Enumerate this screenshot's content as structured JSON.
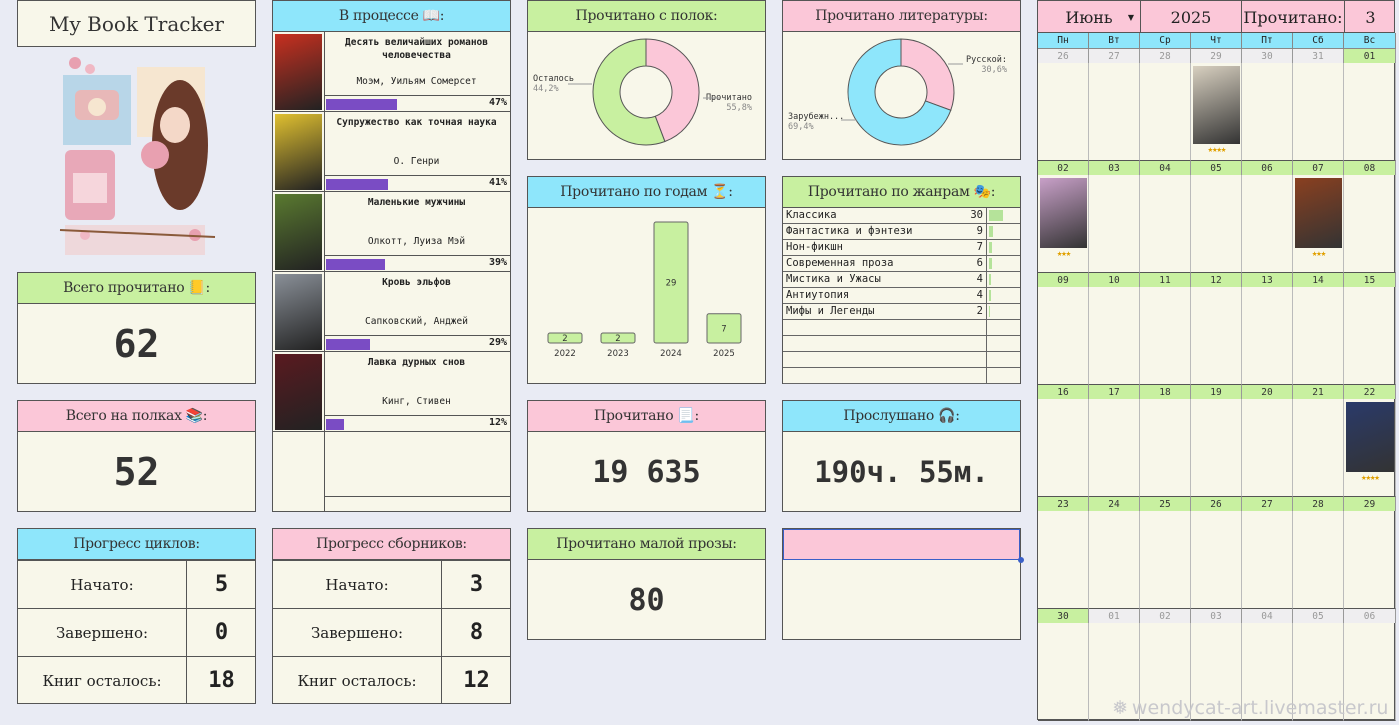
{
  "title": "My Book Tracker",
  "total_read": {
    "label": "Всего прочитано",
    "value": "62"
  },
  "total_shelves": {
    "label": "Всего на полках",
    "value": "52"
  },
  "in_progress": {
    "label": "В процессе",
    "books": [
      {
        "title": "Десять величайших романов человечества",
        "author": "Моэм, Уильям Сомерсет",
        "progress": 47,
        "pct": "47%",
        "cover_color": "#c83020"
      },
      {
        "title": "Супружество как точная наука",
        "author": "О. Генри",
        "progress": 41,
        "pct": "41%",
        "cover_color": "#e0c030"
      },
      {
        "title": "Маленькие мужчины",
        "author": "Олкотт, Луиза Мэй",
        "progress": 39,
        "pct": "39%",
        "cover_color": "#5a7a30"
      },
      {
        "title": "Кровь эльфов",
        "author": "Сапковский, Анджей",
        "progress": 29,
        "pct": "29%",
        "cover_color": "#8a9098"
      },
      {
        "title": "Лавка дурных снов",
        "author": "Кинг, Стивен",
        "progress": 12,
        "pct": "12%",
        "cover_color": "#5a1a20"
      }
    ]
  },
  "shelves_chart": {
    "label": "Прочитано с полок:",
    "slices": [
      {
        "name": "Осталось",
        "value": "44,2%",
        "pct": 44.2,
        "color": "#fbc7d8"
      },
      {
        "name": "Прочитано",
        "value": "55,8%",
        "pct": 55.8,
        "color": "#c8f0a0"
      }
    ]
  },
  "lit_chart": {
    "label": "Прочитано литературы:",
    "slices": [
      {
        "name": "Русской:",
        "value": "30,6%",
        "pct": 30.6,
        "color": "#fbc7d8"
      },
      {
        "name": "Зарубежн...",
        "value": "69,4%",
        "pct": 69.4,
        "color": "#8ee6fb"
      }
    ]
  },
  "chart_data": {
    "type": "bar",
    "title": "Прочитано по годам",
    "categories": [
      "2022",
      "2023",
      "2024",
      "2025"
    ],
    "values": [
      2,
      2,
      29,
      7
    ]
  },
  "genres": {
    "label": "Прочитано по жанрам",
    "items": [
      {
        "name": "Классика",
        "count": "30",
        "value": 30
      },
      {
        "name": "Фантастика и фэнтези",
        "count": "9",
        "value": 9
      },
      {
        "name": "Нон-фикшн",
        "count": "7",
        "value": 7
      },
      {
        "name": "Современная проза",
        "count": "6",
        "value": 6
      },
      {
        "name": "Мистика и Ужасы",
        "count": "4",
        "value": 4
      },
      {
        "name": "Антиутопия",
        "count": "4",
        "value": 4
      },
      {
        "name": "Мифы и Легенды",
        "count": "2",
        "value": 2
      }
    ]
  },
  "pages_read": {
    "label": "Прочитано",
    "value": "19 635"
  },
  "listened": {
    "label": "Прослушано",
    "value": "190ч. 55м."
  },
  "cycles": {
    "label": "Прогресс циклов:",
    "rows": [
      {
        "label": "Начато:",
        "value": "5"
      },
      {
        "label": "Завершено:",
        "value": "0"
      },
      {
        "label": "Книг осталось:",
        "value": "18"
      }
    ]
  },
  "collections": {
    "label": "Прогресс сборников:",
    "rows": [
      {
        "label": "Начато:",
        "value": "3"
      },
      {
        "label": "Завершено:",
        "value": "8"
      },
      {
        "label": "Книг осталось:",
        "value": "12"
      }
    ]
  },
  "short_prose": {
    "label": "Прочитано малой прозы:",
    "value": "80"
  },
  "calendar": {
    "month": "Июнь",
    "year": "2025",
    "read_label": "Прочитано:",
    "read_value": "3",
    "weekdays": [
      "Пн",
      "Вт",
      "Ср",
      "Чт",
      "Пт",
      "Сб",
      "Вс"
    ],
    "weeks": [
      [
        "26",
        "27",
        "28",
        "29",
        "30",
        "31",
        "01"
      ],
      [
        "02",
        "03",
        "04",
        "05",
        "06",
        "07",
        "08"
      ],
      [
        "09",
        "10",
        "11",
        "12",
        "13",
        "14",
        "15"
      ],
      [
        "16",
        "17",
        "18",
        "19",
        "20",
        "21",
        "22"
      ],
      [
        "23",
        "24",
        "25",
        "26",
        "27",
        "28",
        "29"
      ],
      [
        "30",
        "01",
        "02",
        "03",
        "04",
        "05",
        "06"
      ]
    ],
    "books": [
      {
        "week": 0,
        "day": 3,
        "stars": "★★★★",
        "color": "#d8d0c0"
      },
      {
        "week": 1,
        "day": 0,
        "stars": "★★★",
        "color": "#c8a0c8"
      },
      {
        "week": 1,
        "day": 5,
        "stars": "★★★",
        "color": "#8a4020"
      },
      {
        "week": 3,
        "day": 6,
        "stars": "★★★★",
        "color": "#2a3a6a"
      }
    ]
  },
  "watermark": "wendycat-art.livemaster.ru"
}
